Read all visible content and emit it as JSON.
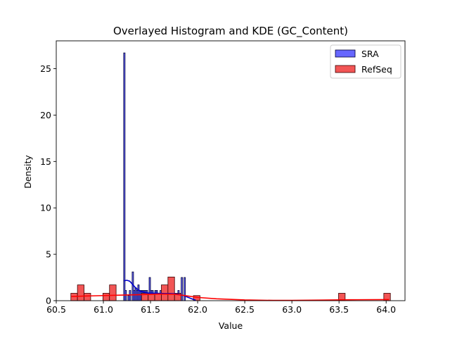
{
  "chart_data": {
    "type": "histogram",
    "title": "Overlayed Histogram and KDE (GC_Content)",
    "xlabel": "Value",
    "ylabel": "Density",
    "xlim": [
      60.5,
      64.2
    ],
    "ylim": [
      0,
      28
    ],
    "xticks": [
      60.5,
      61.0,
      61.5,
      62.0,
      62.5,
      63.0,
      63.5,
      64.0
    ],
    "xtick_labels": [
      "60.5",
      "61.0",
      "61.5",
      "62.0",
      "62.5",
      "63.0",
      "63.5",
      "64.0"
    ],
    "yticks": [
      0,
      5,
      10,
      15,
      20,
      25
    ],
    "ytick_labels": [
      "0",
      "5",
      "10",
      "15",
      "20",
      "25"
    ],
    "grid": false,
    "legend_position": "top-right",
    "series": [
      {
        "name": "SRA",
        "fill": "#6666ff",
        "edge": "#000033",
        "kde_color": "#0000cc",
        "bins": [
          {
            "x0": 61.215,
            "x1": 61.23,
            "density": 26.7
          },
          {
            "x0": 61.23,
            "x1": 61.245,
            "density": 1.1
          },
          {
            "x0": 61.26,
            "x1": 61.275,
            "density": 0.55
          },
          {
            "x0": 61.275,
            "x1": 61.29,
            "density": 1.1
          },
          {
            "x0": 61.305,
            "x1": 61.32,
            "density": 3.1
          },
          {
            "x0": 61.32,
            "x1": 61.335,
            "density": 1.1
          },
          {
            "x0": 61.335,
            "x1": 61.35,
            "density": 1.4
          },
          {
            "x0": 61.35,
            "x1": 61.365,
            "density": 1.1
          },
          {
            "x0": 61.365,
            "x1": 61.38,
            "density": 1.7
          },
          {
            "x0": 61.38,
            "x1": 61.395,
            "density": 1.1
          },
          {
            "x0": 61.395,
            "x1": 61.41,
            "density": 1.1
          },
          {
            "x0": 61.41,
            "x1": 61.425,
            "density": 1.1
          },
          {
            "x0": 61.425,
            "x1": 61.44,
            "density": 1.1
          },
          {
            "x0": 61.44,
            "x1": 61.455,
            "density": 1.1
          },
          {
            "x0": 61.455,
            "x1": 61.47,
            "density": 1.1
          },
          {
            "x0": 61.485,
            "x1": 61.5,
            "density": 2.5
          },
          {
            "x0": 61.5,
            "x1": 61.515,
            "density": 1.1
          },
          {
            "x0": 61.515,
            "x1": 61.53,
            "density": 1.1
          },
          {
            "x0": 61.545,
            "x1": 61.56,
            "density": 1.1
          },
          {
            "x0": 61.56,
            "x1": 61.575,
            "density": 1.1
          },
          {
            "x0": 61.6,
            "x1": 61.615,
            "density": 1.1
          },
          {
            "x0": 61.63,
            "x1": 61.645,
            "density": 1.1
          },
          {
            "x0": 61.675,
            "x1": 61.69,
            "density": 1.1
          },
          {
            "x0": 61.705,
            "x1": 61.72,
            "density": 1.1
          },
          {
            "x0": 61.75,
            "x1": 61.765,
            "density": 0.7
          },
          {
            "x0": 61.79,
            "x1": 61.805,
            "density": 1.1
          },
          {
            "x0": 61.825,
            "x1": 61.84,
            "density": 2.5
          },
          {
            "x0": 61.855,
            "x1": 61.87,
            "density": 2.5
          }
        ],
        "kde": {
          "x": [
            61.22,
            61.25,
            61.28,
            61.31,
            61.34,
            61.37,
            61.4,
            61.45,
            61.5,
            61.55,
            61.6,
            61.65,
            61.7,
            61.75,
            61.8,
            61.85,
            61.9,
            61.95,
            61.98
          ],
          "y": [
            2.15,
            2.2,
            2.1,
            1.75,
            1.4,
            1.15,
            1.0,
            0.85,
            0.8,
            0.8,
            0.78,
            0.76,
            0.76,
            0.75,
            0.68,
            0.55,
            0.35,
            0.15,
            0.05
          ]
        }
      },
      {
        "name": "RefSeq",
        "fill": "#f25555",
        "edge": "#3a0000",
        "kde_color": "#ff0000",
        "bins": [
          {
            "x0": 60.655,
            "x1": 60.725,
            "density": 0.8
          },
          {
            "x0": 60.725,
            "x1": 60.795,
            "density": 1.7
          },
          {
            "x0": 60.795,
            "x1": 60.865,
            "density": 0.8
          },
          {
            "x0": 60.995,
            "x1": 61.065,
            "density": 0.8
          },
          {
            "x0": 61.065,
            "x1": 61.135,
            "density": 1.7
          },
          {
            "x0": 61.405,
            "x1": 61.475,
            "density": 0.8
          },
          {
            "x0": 61.475,
            "x1": 61.545,
            "density": 0.8
          },
          {
            "x0": 61.545,
            "x1": 61.615,
            "density": 0.8
          },
          {
            "x0": 61.615,
            "x1": 61.685,
            "density": 1.7
          },
          {
            "x0": 61.685,
            "x1": 61.755,
            "density": 2.55
          },
          {
            "x0": 61.755,
            "x1": 61.825,
            "density": 0.8
          },
          {
            "x0": 61.955,
            "x1": 62.025,
            "density": 0.55
          },
          {
            "x0": 63.495,
            "x1": 63.565,
            "density": 0.8
          },
          {
            "x0": 63.975,
            "x1": 64.045,
            "density": 0.8
          }
        ],
        "kde": {
          "x": [
            60.66,
            60.8,
            61.0,
            61.2,
            61.4,
            61.6,
            61.75,
            61.9,
            62.0,
            62.2,
            62.5,
            62.8,
            63.0,
            63.3,
            63.6,
            64.03
          ],
          "y": [
            0.45,
            0.5,
            0.55,
            0.6,
            0.65,
            0.72,
            0.7,
            0.5,
            0.35,
            0.2,
            0.08,
            0.03,
            0.03,
            0.06,
            0.1,
            0.12
          ]
        }
      }
    ]
  }
}
